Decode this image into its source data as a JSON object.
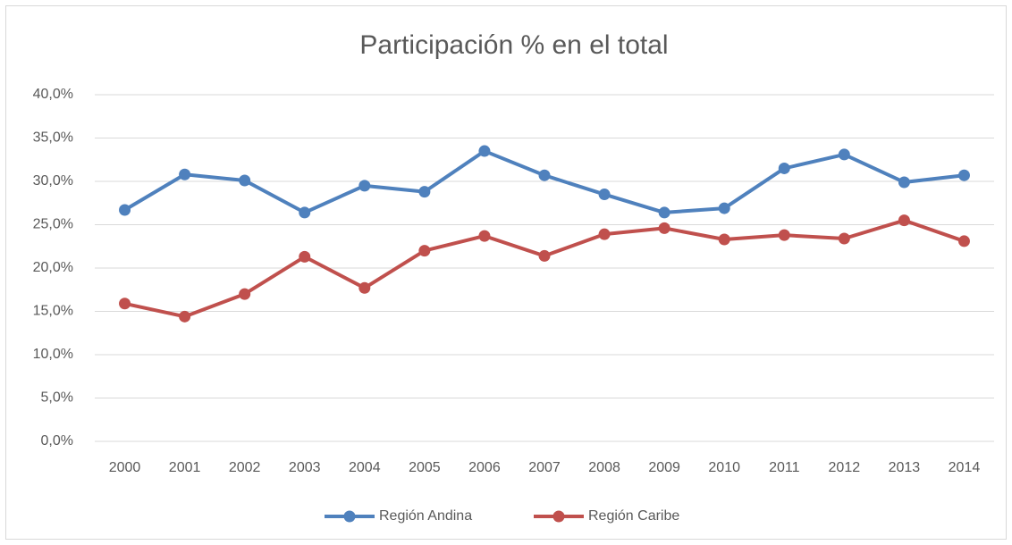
{
  "chart_data": {
    "type": "line",
    "title": "Participación % en el total",
    "categories": [
      "2000",
      "2001",
      "2002",
      "2003",
      "2004",
      "2005",
      "2006",
      "2007",
      "2008",
      "2009",
      "2010",
      "2011",
      "2012",
      "2013",
      "2014"
    ],
    "series": [
      {
        "name": "Región Andina",
        "color": "#4f81bd",
        "values": [
          26.7,
          30.8,
          30.1,
          26.4,
          29.5,
          28.8,
          33.5,
          30.7,
          28.5,
          26.4,
          26.9,
          31.5,
          33.1,
          29.9,
          30.7
        ]
      },
      {
        "name": "Región Caribe",
        "color": "#c0504d",
        "values": [
          15.9,
          14.4,
          17.0,
          21.3,
          17.7,
          22.0,
          23.7,
          21.4,
          23.9,
          24.6,
          23.3,
          23.8,
          23.4,
          25.5,
          23.1
        ]
      }
    ],
    "ylim": [
      0,
      40
    ],
    "yticks": [
      {
        "value": 0,
        "label": "0,0%"
      },
      {
        "value": 5,
        "label": "5,0%"
      },
      {
        "value": 10,
        "label": "10,0%"
      },
      {
        "value": 15,
        "label": "15,0%"
      },
      {
        "value": 20,
        "label": "20,0%"
      },
      {
        "value": 25,
        "label": "25,0%"
      },
      {
        "value": 30,
        "label": "30,0%"
      },
      {
        "value": 35,
        "label": "35,0%"
      },
      {
        "value": 40,
        "label": "40,0%"
      }
    ],
    "grid": true,
    "legend": "bottom"
  }
}
